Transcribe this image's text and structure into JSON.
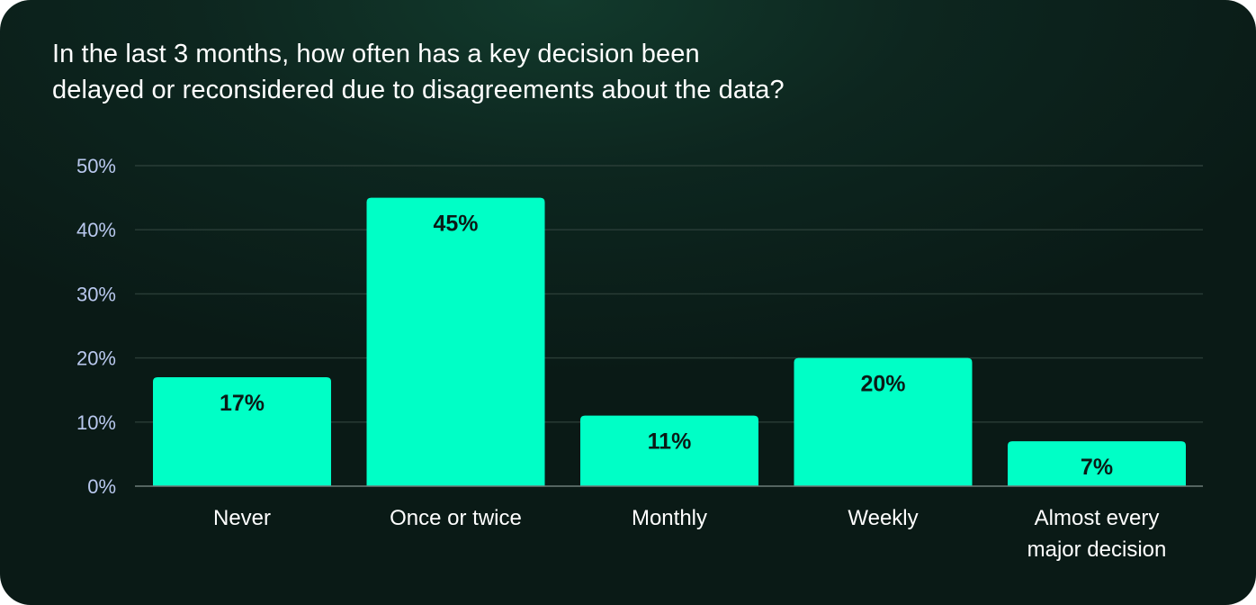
{
  "title": {
    "line1": "In the last 3 months, how often has a key decision been",
    "line2": "delayed or reconsidered due to disagreements about the data?"
  },
  "colors": {
    "bar": "#00ffc6",
    "inside_label": "#0b1a16",
    "outside_label": "#2ef0c2",
    "background": "#0b1f19"
  },
  "chart_data": {
    "type": "bar",
    "title": "In the last 3 months, how often has a key decision been delayed or reconsidered due to disagreements about the data?",
    "categories": [
      [
        "Never"
      ],
      [
        "Once or twice"
      ],
      [
        "Monthly"
      ],
      [
        "Weekly"
      ],
      [
        "Almost every",
        "major decision"
      ]
    ],
    "values": [
      17,
      45,
      11,
      20,
      7
    ],
    "value_labels": [
      "17%",
      "45%",
      "11%",
      "20%",
      "7%"
    ],
    "ylim": [
      0,
      50
    ],
    "yticks": [
      0,
      10,
      20,
      30,
      40,
      50
    ],
    "ytick_labels": [
      "0%",
      "10%",
      "20%",
      "30%",
      "40%",
      "50%"
    ],
    "xlabel": "",
    "ylabel": "",
    "grid": true,
    "legend": "none"
  }
}
